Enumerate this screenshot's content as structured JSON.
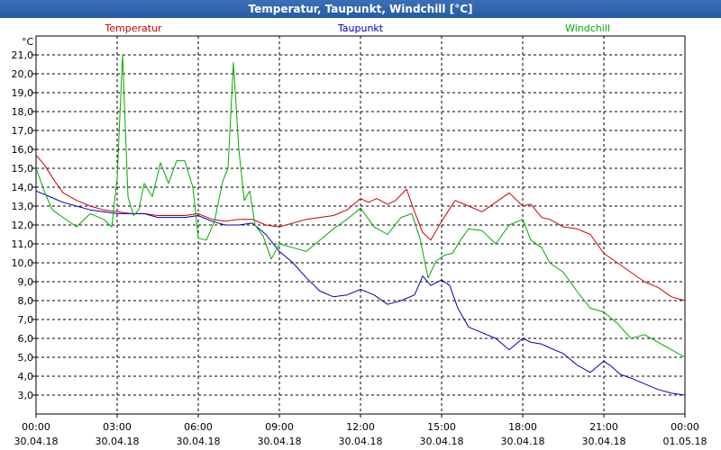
{
  "window": {
    "title": "Temperatur, Taupunkt, Windchill [°C]"
  },
  "chart_data": {
    "type": "line",
    "title": "Temperatur, Taupunkt, Windchill [°C]",
    "ylabel": "°C",
    "xlabel": "",
    "ylim": [
      2.0,
      22.0
    ],
    "xlim": [
      0,
      24
    ],
    "grid": true,
    "y_ticks": [
      "3,0",
      "4,0",
      "5,0",
      "6,0",
      "7,0",
      "8,0",
      "9,0",
      "10,0",
      "11,0",
      "12,0",
      "13,0",
      "14,0",
      "15,0",
      "16,0",
      "17,0",
      "18,0",
      "19,0",
      "20,0",
      "21,0"
    ],
    "x_ticks": [
      {
        "time": "00:00",
        "date": "30.04.18"
      },
      {
        "time": "03:00",
        "date": "30.04.18"
      },
      {
        "time": "06:00",
        "date": "30.04.18"
      },
      {
        "time": "09:00",
        "date": "30.04.18"
      },
      {
        "time": "12:00",
        "date": "30.04.18"
      },
      {
        "time": "15:00",
        "date": "30.04.18"
      },
      {
        "time": "18:00",
        "date": "30.04.18"
      },
      {
        "time": "21:00",
        "date": "30.04.18"
      },
      {
        "time": "00:00",
        "date": "01.05.18"
      }
    ],
    "series": [
      {
        "name": "Temperatur",
        "color": "#cc0000",
        "x": [
          0,
          0.3,
          0.7,
          1,
          1.5,
          2,
          2.5,
          3,
          3.5,
          4,
          4.5,
          5,
          5.5,
          6,
          6.5,
          7,
          7.5,
          8,
          8.5,
          9,
          9.5,
          10,
          10.5,
          11,
          11.5,
          12,
          12.3,
          12.6,
          13,
          13.3,
          13.7,
          14,
          14.3,
          14.6,
          15,
          15.5,
          16,
          16.5,
          17,
          17.5,
          18,
          18.3,
          18.7,
          19,
          19.5,
          20,
          20.5,
          21,
          21.5,
          22,
          22.5,
          23,
          23.5,
          24
        ],
        "values": [
          15.7,
          15.2,
          14.3,
          13.7,
          13.3,
          13.0,
          12.8,
          12.7,
          12.6,
          12.6,
          12.5,
          12.5,
          12.5,
          12.6,
          12.3,
          12.2,
          12.3,
          12.3,
          12.0,
          11.9,
          12.1,
          12.3,
          12.4,
          12.5,
          12.8,
          13.4,
          13.2,
          13.4,
          13.1,
          13.3,
          13.9,
          12.7,
          11.6,
          11.2,
          12.2,
          13.3,
          13.0,
          12.7,
          13.2,
          13.7,
          13.0,
          13.1,
          12.4,
          12.3,
          11.9,
          11.8,
          11.5,
          10.5,
          10.0,
          9.5,
          9.0,
          8.7,
          8.2,
          8.0
        ]
      },
      {
        "name": "Taupunkt",
        "color": "#0000b4",
        "x": [
          0,
          0.5,
          1,
          1.5,
          2,
          2.5,
          3,
          3.5,
          4,
          4.5,
          5,
          5.5,
          6,
          6.5,
          7,
          7.5,
          8,
          8.5,
          9,
          9.5,
          10,
          10.5,
          11,
          11.5,
          12,
          12.5,
          13,
          13.5,
          14,
          14.3,
          14.6,
          15,
          15.3,
          15.6,
          16,
          16.5,
          17,
          17.5,
          18,
          18.3,
          18.7,
          19,
          19.5,
          20,
          20.5,
          21,
          21.3,
          21.6,
          22,
          22.5,
          23,
          23.5,
          24
        ],
        "values": [
          13.8,
          13.5,
          13.2,
          13.0,
          12.8,
          12.7,
          12.6,
          12.6,
          12.6,
          12.4,
          12.4,
          12.4,
          12.5,
          12.2,
          12.0,
          12.0,
          12.1,
          11.5,
          10.6,
          10.0,
          9.2,
          8.5,
          8.2,
          8.3,
          8.6,
          8.3,
          7.8,
          8.0,
          8.3,
          9.3,
          8.8,
          9.1,
          8.8,
          7.6,
          6.6,
          6.3,
          6.0,
          5.4,
          6.0,
          5.8,
          5.7,
          5.5,
          5.2,
          4.6,
          4.2,
          4.8,
          4.5,
          4.1,
          3.9,
          3.6,
          3.3,
          3.1,
          3.0
        ]
      },
      {
        "name": "Windchill",
        "color": "#00aa00",
        "x": [
          0,
          0.3,
          0.6,
          1,
          1.5,
          2,
          2.5,
          2.8,
          3.0,
          3.2,
          3.4,
          3.6,
          3.8,
          4,
          4.3,
          4.6,
          4.9,
          5.2,
          5.5,
          5.8,
          6,
          6.3,
          6.6,
          6.9,
          7.1,
          7.3,
          7.5,
          7.7,
          7.9,
          8.1,
          8.4,
          8.7,
          9,
          9.5,
          10,
          10.5,
          11,
          11.5,
          12,
          12.5,
          13,
          13.5,
          13.9,
          14.2,
          14.5,
          14.8,
          15.1,
          15.4,
          15.7,
          16,
          16.5,
          17,
          17.5,
          18,
          18.3,
          18.7,
          19,
          19.5,
          20,
          20.5,
          21,
          21.5,
          22,
          22.5,
          23,
          23.5,
          24
        ],
        "values": [
          15.0,
          13.8,
          12.8,
          12.4,
          11.9,
          12.6,
          12.3,
          11.9,
          14.5,
          21.0,
          13.5,
          12.5,
          12.8,
          14.2,
          13.5,
          15.3,
          14.2,
          15.4,
          15.4,
          14.0,
          11.3,
          11.2,
          12.2,
          14.3,
          15.0,
          20.6,
          16.0,
          13.3,
          13.8,
          12.0,
          11.4,
          10.2,
          11.0,
          10.8,
          10.6,
          11.2,
          11.8,
          12.3,
          12.9,
          11.9,
          11.5,
          12.4,
          12.6,
          11.3,
          9.2,
          10.1,
          10.4,
          10.5,
          11.2,
          11.8,
          11.7,
          11.0,
          12.0,
          12.3,
          11.2,
          10.8,
          10.0,
          9.5,
          8.5,
          7.6,
          7.4,
          6.8,
          6.0,
          6.2,
          5.8,
          5.4,
          5.0
        ]
      }
    ]
  }
}
